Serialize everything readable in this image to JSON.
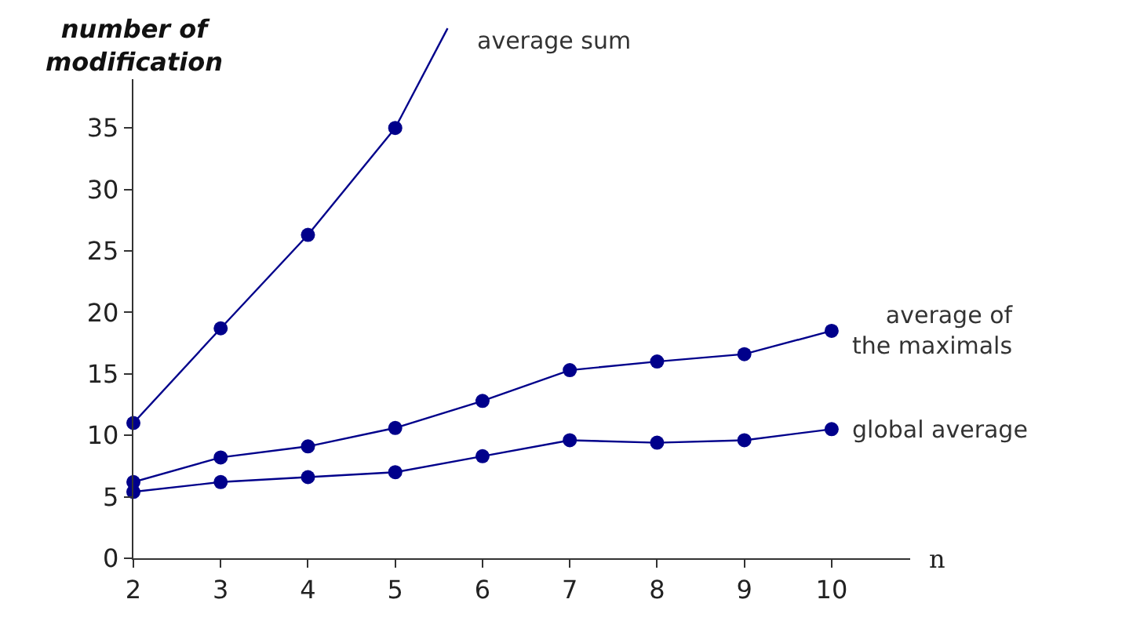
{
  "chart_data": {
    "type": "line",
    "xlabel": "n",
    "ylabel": "number of\nmodification",
    "x": [
      2,
      3,
      4,
      5,
      6,
      7,
      8,
      9,
      10
    ],
    "series": [
      {
        "name": "average sum",
        "color": "#00008b",
        "x": [
          2,
          3,
          4,
          5
        ],
        "values": [
          11.0,
          18.7,
          26.3,
          35.0
        ]
      },
      {
        "color": "#00008b",
        "x": [
          5,
          5.6
        ],
        "values": [
          35.0,
          43.1
        ],
        "marker": "none"
      },
      {
        "name": "average of\nthe maximals",
        "color": "#00008b",
        "values": [
          6.2,
          8.2,
          9.1,
          10.6,
          12.8,
          15.3,
          16.0,
          16.6,
          18.5
        ]
      },
      {
        "name": "global average",
        "color": "#00008b",
        "values": [
          5.4,
          6.2,
          6.6,
          7.0,
          8.3,
          9.6,
          9.4,
          9.6,
          10.5
        ]
      }
    ],
    "xlim": [
      2,
      10.9
    ],
    "ylim": [
      0,
      44
    ],
    "xticks": [
      2,
      3,
      4,
      5,
      6,
      7,
      8,
      9,
      10
    ],
    "yticks": [
      0,
      5,
      10,
      15,
      20,
      25,
      30,
      35
    ],
    "legend": false,
    "marker": "circle",
    "line_style": "solid"
  }
}
